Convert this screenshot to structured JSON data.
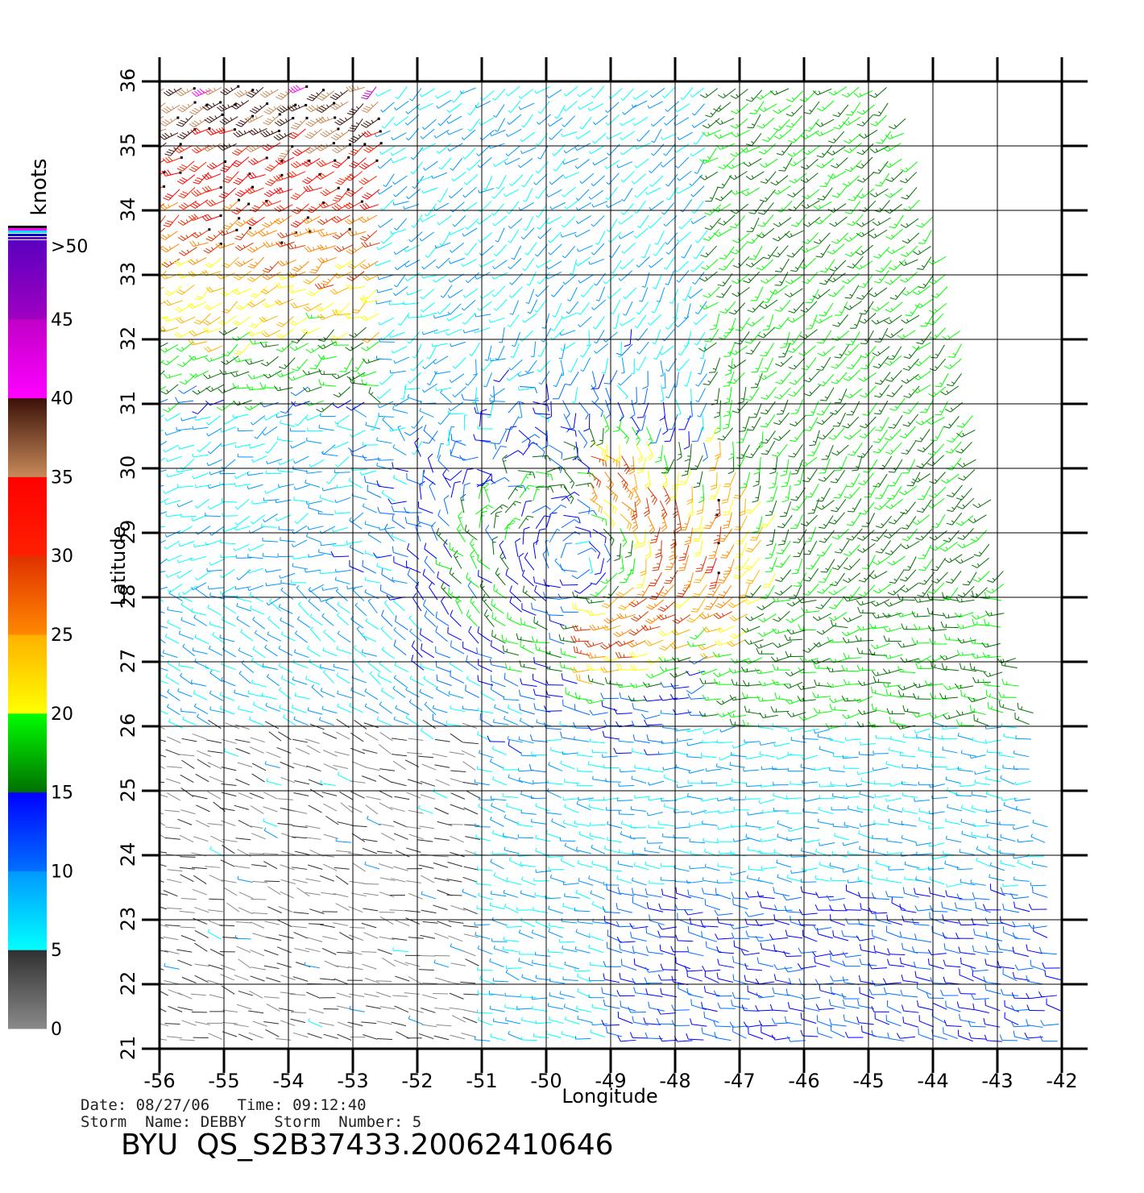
{
  "chart_data": {
    "type": "wind_barb_map",
    "xlabel": "Longitude",
    "ylabel": "Latitude",
    "xlim": [
      -56,
      -42
    ],
    "ylim": [
      21,
      36
    ],
    "xticks": [
      "-56",
      "-55",
      "-54",
      "-53",
      "-52",
      "-51",
      "-50",
      "-49",
      "-48",
      "-47",
      "-46",
      "-45",
      "-44",
      "-43",
      "-42"
    ],
    "yticks": [
      "21",
      "22",
      "23",
      "24",
      "25",
      "26",
      "27",
      "28",
      "29",
      "30",
      "31",
      "32",
      "33",
      "34",
      "35",
      "36"
    ],
    "grid": true,
    "storm_center": {
      "lon": -49.5,
      "lat": 28.6
    },
    "colorbar": {
      "unit_label": "knots",
      "tick_labels": [
        "0",
        "5",
        "10",
        "15",
        "20",
        "25",
        "30",
        "35",
        "40",
        "45",
        ">50"
      ],
      "bands": [
        {
          "from": 0,
          "to": 5,
          "colors": [
            "#8a8a8a",
            "#303030"
          ]
        },
        {
          "from": 5,
          "to": 10,
          "colors": [
            "#00ffff",
            "#0098ff"
          ]
        },
        {
          "from": 10,
          "to": 15,
          "colors": [
            "#0070ff",
            "#0000ff"
          ]
        },
        {
          "from": 15,
          "to": 20,
          "colors": [
            "#007000",
            "#00ff00"
          ]
        },
        {
          "from": 20,
          "to": 25,
          "colors": [
            "#ffff00",
            "#ffb000"
          ]
        },
        {
          "from": 25,
          "to": 30,
          "colors": [
            "#ff8800",
            "#e03000"
          ]
        },
        {
          "from": 30,
          "to": 35,
          "colors": [
            "#ff2000",
            "#ff0000"
          ]
        },
        {
          "from": 35,
          "to": 40,
          "colors": [
            "#c88a5a",
            "#3a1008"
          ]
        },
        {
          "from": 40,
          "to": 45,
          "colors": [
            "#ff00ff",
            "#c000c8"
          ]
        },
        {
          "from": 45,
          "to": 50,
          "colors": [
            "#a000c0",
            "#5a00c0"
          ]
        }
      ]
    }
  },
  "caption": {
    "date_line": "Date: 08/27/06   Time: 09:12:40",
    "storm_line": "Storm  Name: DEBBY   Storm  Number: 5",
    "title": "BYU  QS_S2B37433.20062410646"
  }
}
